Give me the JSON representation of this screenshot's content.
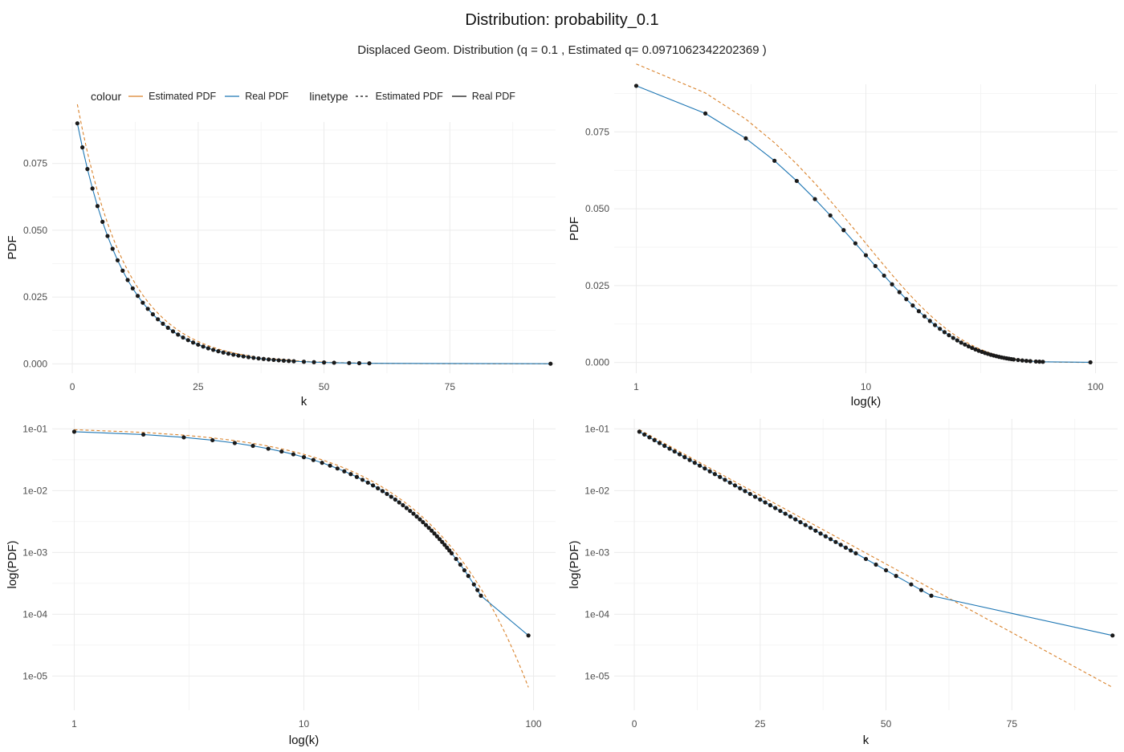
{
  "title": "Distribution:  probability_0.1",
  "subtitle": "Displaced Geom. Distribution (q = 0.1 , Estimated q= 0.0971062342202369 )",
  "colors": {
    "estimated": "#d9822b",
    "real": "#1f77b4",
    "point": "#1a1a1a",
    "grid": "#ebebeb",
    "tick_text": "#4d4d4d"
  },
  "legend": {
    "colour_title": "colour",
    "linetype_title": "linetype",
    "estimated_label": "Estimated PDF",
    "real_label": "Real PDF"
  },
  "chart_data": [
    {
      "type": "line",
      "panel": "top-left",
      "x_scale": "linear",
      "y_scale": "linear",
      "xlabel": "k",
      "ylabel": "PDF",
      "xlim": [
        -4,
        96
      ],
      "ylim": [
        -0.0035,
        0.0905
      ],
      "x_ticks": [
        0,
        25,
        50,
        75
      ],
      "x_tick_labels": [
        "0",
        "25",
        "50",
        "75"
      ],
      "y_ticks": [
        0,
        0.025,
        0.05,
        0.075
      ],
      "y_tick_labels": [
        "0.000",
        "0.025",
        "0.050",
        "0.075"
      ],
      "grid": true,
      "legend": "top-left"
    },
    {
      "type": "line",
      "panel": "top-right",
      "x_scale": "log10",
      "y_scale": "linear",
      "xlabel": "log(k)",
      "ylabel": "PDF",
      "xlim": [
        1,
        100
      ],
      "ylim": [
        -0.0035,
        0.0905
      ],
      "x_ticks": [
        1,
        10,
        100
      ],
      "x_tick_labels": [
        "1",
        "10",
        "100"
      ],
      "y_ticks": [
        0,
        0.025,
        0.05,
        0.075
      ],
      "y_tick_labels": [
        "0.000",
        "0.025",
        "0.050",
        "0.075"
      ],
      "grid": true
    },
    {
      "type": "line",
      "panel": "bottom-left",
      "x_scale": "log10",
      "y_scale": "log10",
      "xlabel": "log(k)",
      "ylabel": "log(PDF)",
      "xlim": [
        1,
        100
      ],
      "ylim": [
        4.5e-06,
        0.09
      ],
      "x_ticks": [
        1,
        10,
        100
      ],
      "x_tick_labels": [
        "1",
        "10",
        "100"
      ],
      "y_ticks": [
        0.1,
        0.01,
        0.001,
        0.0001,
        1e-05
      ],
      "y_tick_labels": [
        "1e-01",
        "1e-02",
        "1e-03",
        "1e-04",
        "1e-05"
      ],
      "grid": true
    },
    {
      "type": "line",
      "panel": "bottom-right",
      "x_scale": "linear",
      "y_scale": "log10",
      "xlabel": "k",
      "ylabel": "log(PDF)",
      "xlim": [
        -4,
        96
      ],
      "ylim": [
        4.5e-06,
        0.09
      ],
      "x_ticks": [
        0,
        25,
        50,
        75
      ],
      "x_tick_labels": [
        "0",
        "25",
        "50",
        "75"
      ],
      "y_ticks": [
        0.1,
        0.01,
        0.001,
        0.0001,
        1e-05
      ],
      "y_tick_labels": [
        "1e-01",
        "1e-02",
        "1e-03",
        "1e-04",
        "1e-05"
      ],
      "grid": true
    }
  ],
  "series_data": {
    "real_q": 0.1,
    "estimated_q": 0.0971062342202369,
    "observed_k": [
      1,
      2,
      3,
      4,
      5,
      6,
      7,
      8,
      9,
      10,
      11,
      12,
      13,
      14,
      15,
      16,
      17,
      18,
      19,
      20,
      21,
      22,
      23,
      24,
      25,
      26,
      27,
      28,
      29,
      30,
      31,
      32,
      33,
      34,
      35,
      36,
      37,
      38,
      39,
      40,
      41,
      42,
      43,
      44,
      46,
      48,
      50,
      52,
      55,
      57,
      59,
      95
    ],
    "observed_pdf": [
      0.09,
      0.081,
      0.0729,
      0.06561,
      0.059049,
      0.0531441,
      0.04782969,
      0.043046721,
      0.0387420489,
      0.03486784401,
      0.031381059609,
      0.0282429536481,
      0.02541865828329,
      0.022876792454961,
      0.0205891132094649,
      0.0185302018885184,
      0.0166771816996666,
      0.0150094635296999,
      0.0135085171767299,
      0.0121576654590569,
      0.0109418989131512,
      0.00984770902183612,
      0.00886293811965251,
      0.00797664430768726,
      0.00717897987691853,
      0.00646108188922668,
      0.00581497370030401,
      0.00523347633027361,
      0.00471012869724625,
      0.00423911582752162,
      0.00381520424476946,
      0.00343368382029252,
      0.00309031543826326,
      0.00278128389443694,
      0.00250315550499324,
      0.00225283995449392,
      0.00202755595904453,
      0.00182480036314008,
      0.00164232032682607,
      0.00147808829414346,
      0.00133027946472912,
      0.00119725151825621,
      0.00107752636643059,
      0.000969773729787528,
      0.000785516721127898,
      0.000636268544113597,
      0.000515377520732014,
      0.000417455791792932,
      0.000304325272217047,
      0.000246503470495808,
      0.000199667811101605,
      4.54e-05
    ]
  }
}
